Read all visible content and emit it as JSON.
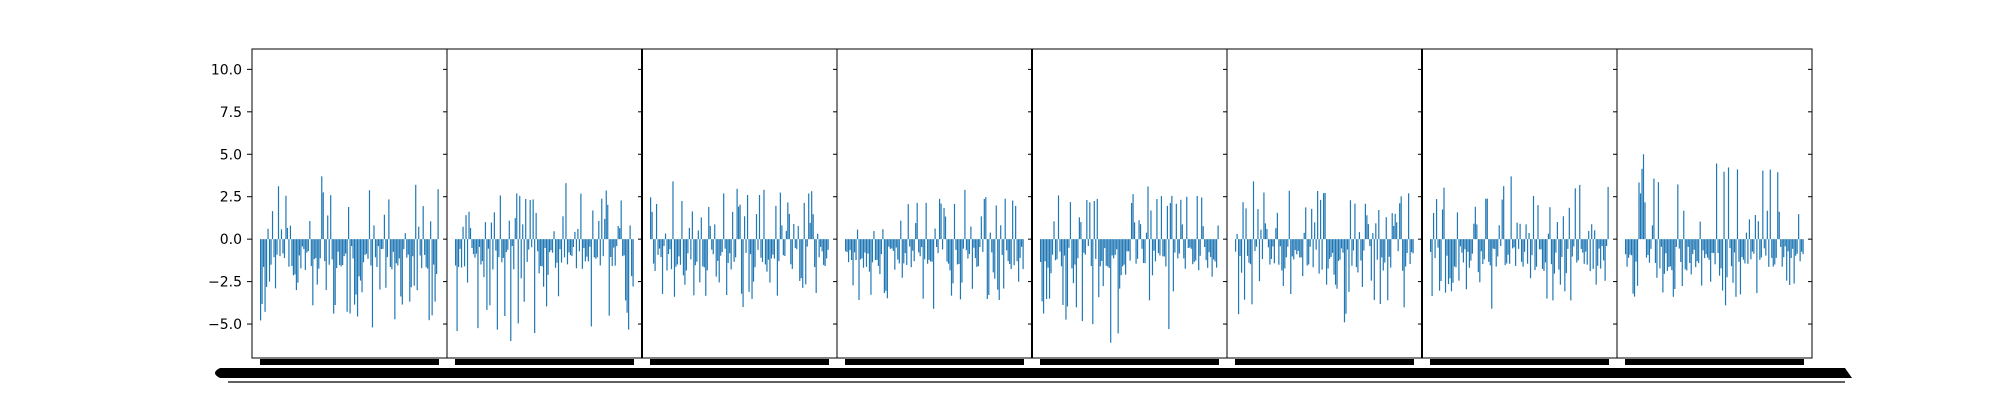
{
  "chart_data": {
    "type": "bar",
    "panel_count": 8,
    "shared_y_axis": true,
    "ylim": [
      -7.0,
      11.2
    ],
    "yticks": [
      -5.0,
      -2.5,
      0.0,
      2.5,
      5.0,
      7.5,
      10.0
    ],
    "ytick_labels": [
      "−5.0",
      "−2.5",
      "0.0",
      "2.5",
      "5.0",
      "7.5",
      "10.0"
    ],
    "xtick_labels_note": "x tick labels are rendered as overlapping black marks and are not legible",
    "bars_per_panel": 120,
    "bar_color": "#1f77b4",
    "panel_value_ranges": [
      {
        "min": -5.2,
        "max": 3.7
      },
      {
        "min": -6.0,
        "max": 3.3
      },
      {
        "min": -4.0,
        "max": 3.4
      },
      {
        "min": -4.1,
        "max": 2.9
      },
      {
        "min": -6.1,
        "max": 3.1
      },
      {
        "min": -4.9,
        "max": 3.4
      },
      {
        "min": -4.1,
        "max": 3.7
      },
      {
        "min": -3.9,
        "max": 5.0
      }
    ],
    "title": "",
    "xlabel": "",
    "ylabel": "",
    "grid": false,
    "legend": "none"
  }
}
